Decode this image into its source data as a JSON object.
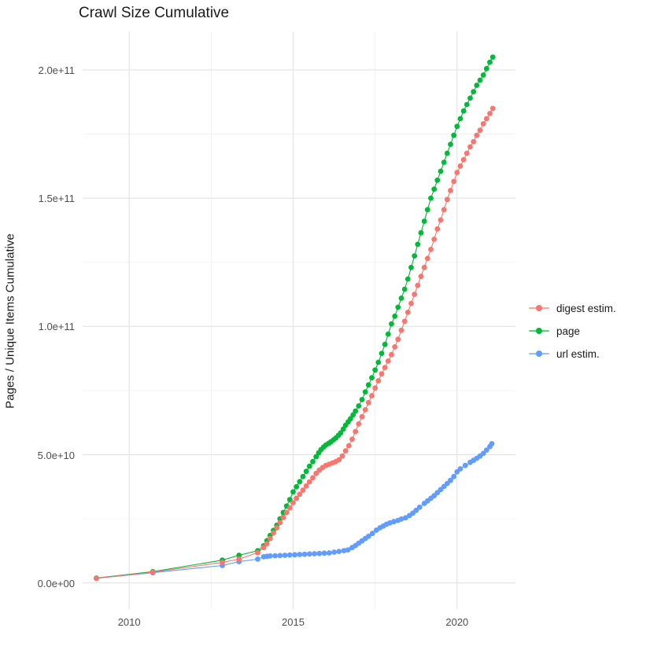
{
  "title": "Crawl Size Cumulative",
  "axes": {
    "y_label": "Pages / Unique Items Cumulative",
    "x_label": "",
    "y_ticks": [
      {
        "label": "0.0e+00",
        "value_e9": 0
      },
      {
        "label": "5.0e+10",
        "value_e9": 50
      },
      {
        "label": "1.0e+11",
        "value_e9": 100
      },
      {
        "label": "1.5e+11",
        "value_e9": 150
      },
      {
        "label": "2.0e+11",
        "value_e9": 200
      }
    ],
    "x_ticks": [
      {
        "label": "2010",
        "value": 2010
      },
      {
        "label": "2015",
        "value": 2015
      },
      {
        "label": "2020",
        "value": 2020
      }
    ]
  },
  "legend": {
    "items": [
      {
        "label": "digest estim.",
        "color": "#F8766D"
      },
      {
        "label": "page",
        "color": "#00BA38"
      },
      {
        "label": "url estim.",
        "color": "#619CFF"
      }
    ]
  },
  "chart_data": {
    "type": "line",
    "style": "points-with-line",
    "title": "Crawl Size Cumulative",
    "xlabel": "",
    "ylabel": "Pages / Unique Items Cumulative",
    "y_unit": "items (values stored in billions, 1e9)",
    "x_domain": [
      2008.58,
      2021.78
    ],
    "y_domain_e9": [
      -10.2,
      215
    ],
    "grid": {
      "x_major": [
        2010,
        2015,
        2020
      ],
      "x_minor": [
        2012.5,
        2017.5
      ],
      "y_major_e9": [
        0,
        50,
        100,
        150,
        200
      ],
      "y_minor_e9": [
        25,
        75,
        125,
        175
      ]
    },
    "legend_position": "right",
    "series": [
      {
        "name": "url estim.",
        "color": "#619CFF",
        "points": [
          [
            2009.0,
            1.8
          ],
          [
            2010.72,
            4.0
          ],
          [
            2012.84,
            6.8
          ],
          [
            2013.35,
            8.3
          ],
          [
            2013.92,
            9.3
          ],
          [
            2014.1,
            10.2
          ],
          [
            2014.2,
            10.4
          ],
          [
            2014.3,
            10.5
          ],
          [
            2014.45,
            10.6
          ],
          [
            2014.6,
            10.7
          ],
          [
            2014.75,
            10.8
          ],
          [
            2014.9,
            10.9
          ],
          [
            2015.05,
            11.0
          ],
          [
            2015.2,
            11.1
          ],
          [
            2015.35,
            11.2
          ],
          [
            2015.5,
            11.3
          ],
          [
            2015.65,
            11.4
          ],
          [
            2015.8,
            11.5
          ],
          [
            2015.95,
            11.6
          ],
          [
            2016.1,
            11.7
          ],
          [
            2016.25,
            12.0
          ],
          [
            2016.4,
            12.3
          ],
          [
            2016.55,
            12.6
          ],
          [
            2016.67,
            12.9
          ],
          [
            2016.8,
            13.8
          ],
          [
            2016.9,
            14.6
          ],
          [
            2017.0,
            15.5
          ],
          [
            2017.1,
            16.4
          ],
          [
            2017.2,
            17.3
          ],
          [
            2017.3,
            18.2
          ],
          [
            2017.42,
            19.3
          ],
          [
            2017.54,
            20.6
          ],
          [
            2017.65,
            21.5
          ],
          [
            2017.75,
            22.2
          ],
          [
            2017.85,
            22.9
          ],
          [
            2017.95,
            23.4
          ],
          [
            2018.07,
            23.9
          ],
          [
            2018.2,
            24.4
          ],
          [
            2018.3,
            24.9
          ],
          [
            2018.43,
            25.4
          ],
          [
            2018.55,
            26.3
          ],
          [
            2018.65,
            27.2
          ],
          [
            2018.75,
            28.3
          ],
          [
            2018.86,
            29.5
          ],
          [
            2019.0,
            31.0
          ],
          [
            2019.1,
            32.0
          ],
          [
            2019.2,
            33.0
          ],
          [
            2019.3,
            34.0
          ],
          [
            2019.4,
            35.2
          ],
          [
            2019.5,
            36.4
          ],
          [
            2019.6,
            37.6
          ],
          [
            2019.7,
            38.8
          ],
          [
            2019.8,
            40.0
          ],
          [
            2019.9,
            41.5
          ],
          [
            2020.0,
            43.3
          ],
          [
            2020.1,
            44.5
          ],
          [
            2020.25,
            45.8
          ],
          [
            2020.4,
            47.0
          ],
          [
            2020.5,
            47.8
          ],
          [
            2020.6,
            48.6
          ],
          [
            2020.7,
            49.5
          ],
          [
            2020.8,
            50.5
          ],
          [
            2020.9,
            51.8
          ],
          [
            2021.0,
            53.2
          ],
          [
            2021.06,
            54.3
          ]
        ]
      },
      {
        "name": "page",
        "color": "#00BA38",
        "points": [
          [
            2009.0,
            1.9
          ],
          [
            2010.72,
            4.4
          ],
          [
            2012.84,
            8.9
          ],
          [
            2013.35,
            10.8
          ],
          [
            2013.92,
            12.6
          ],
          [
            2014.1,
            14.5
          ],
          [
            2014.2,
            16.5
          ],
          [
            2014.3,
            18.5
          ],
          [
            2014.4,
            20.5
          ],
          [
            2014.5,
            22.5
          ],
          [
            2014.6,
            25.0
          ],
          [
            2014.7,
            27.5
          ],
          [
            2014.8,
            30.0
          ],
          [
            2014.9,
            32.5
          ],
          [
            2015.0,
            35.5
          ],
          [
            2015.1,
            37.5
          ],
          [
            2015.2,
            39.5
          ],
          [
            2015.3,
            41.5
          ],
          [
            2015.4,
            43.5
          ],
          [
            2015.5,
            45.5
          ],
          [
            2015.6,
            47.3
          ],
          [
            2015.7,
            49.2
          ],
          [
            2015.78,
            50.7
          ],
          [
            2015.85,
            52.0
          ],
          [
            2015.93,
            53.0
          ],
          [
            2016.0,
            53.8
          ],
          [
            2016.08,
            54.4
          ],
          [
            2016.15,
            55.0
          ],
          [
            2016.23,
            55.8
          ],
          [
            2016.3,
            56.5
          ],
          [
            2016.38,
            57.5
          ],
          [
            2016.45,
            58.5
          ],
          [
            2016.53,
            60.0
          ],
          [
            2016.6,
            61.5
          ],
          [
            2016.68,
            62.8
          ],
          [
            2016.75,
            64.0
          ],
          [
            2016.83,
            65.5
          ],
          [
            2016.9,
            67.0
          ],
          [
            2017.0,
            69.0
          ],
          [
            2017.1,
            71.5
          ],
          [
            2017.2,
            74.5
          ],
          [
            2017.3,
            77.2
          ],
          [
            2017.4,
            80.0
          ],
          [
            2017.5,
            83.0
          ],
          [
            2017.6,
            86.0
          ],
          [
            2017.7,
            89.5
          ],
          [
            2017.8,
            93.0
          ],
          [
            2017.9,
            97.0
          ],
          [
            2018.0,
            101.0
          ],
          [
            2018.1,
            104.0
          ],
          [
            2018.2,
            107.5
          ],
          [
            2018.3,
            111.0
          ],
          [
            2018.4,
            114.5
          ],
          [
            2018.5,
            118.5
          ],
          [
            2018.6,
            123.0
          ],
          [
            2018.7,
            127.5
          ],
          [
            2018.8,
            132.0
          ],
          [
            2018.9,
            136.5
          ],
          [
            2019.0,
            141.0
          ],
          [
            2019.1,
            145.5
          ],
          [
            2019.2,
            150.0
          ],
          [
            2019.3,
            153.5
          ],
          [
            2019.4,
            157.0
          ],
          [
            2019.5,
            160.5
          ],
          [
            2019.6,
            164.0
          ],
          [
            2019.7,
            167.5
          ],
          [
            2019.8,
            171.0
          ],
          [
            2019.9,
            174.5
          ],
          [
            2020.0,
            178.0
          ],
          [
            2020.1,
            181.0
          ],
          [
            2020.2,
            184.0
          ],
          [
            2020.3,
            186.5
          ],
          [
            2020.4,
            189.0
          ],
          [
            2020.5,
            191.5
          ],
          [
            2020.6,
            194.0
          ],
          [
            2020.7,
            196.0
          ],
          [
            2020.8,
            198.0
          ],
          [
            2020.9,
            200.5
          ],
          [
            2021.0,
            203.0
          ],
          [
            2021.09,
            205.0
          ]
        ]
      },
      {
        "name": "digest estim.",
        "color": "#F8766D",
        "points": [
          [
            2009.0,
            1.8
          ],
          [
            2010.72,
            4.2
          ],
          [
            2012.84,
            8.0
          ],
          [
            2013.35,
            9.3
          ],
          [
            2013.92,
            11.8
          ],
          [
            2014.1,
            13.8
          ],
          [
            2014.2,
            15.3
          ],
          [
            2014.3,
            17.3
          ],
          [
            2014.4,
            19.5
          ],
          [
            2014.5,
            21.5
          ],
          [
            2014.6,
            23.5
          ],
          [
            2014.7,
            25.5
          ],
          [
            2014.8,
            27.5
          ],
          [
            2014.9,
            29.3
          ],
          [
            2015.0,
            31.3
          ],
          [
            2015.1,
            33.0
          ],
          [
            2015.2,
            34.6
          ],
          [
            2015.3,
            36.2
          ],
          [
            2015.4,
            37.8
          ],
          [
            2015.5,
            39.4
          ],
          [
            2015.6,
            41.0
          ],
          [
            2015.7,
            42.7
          ],
          [
            2015.8,
            44.0
          ],
          [
            2015.9,
            45.0
          ],
          [
            2016.0,
            45.8
          ],
          [
            2016.1,
            46.3
          ],
          [
            2016.2,
            46.8
          ],
          [
            2016.3,
            47.3
          ],
          [
            2016.4,
            48.0
          ],
          [
            2016.5,
            49.5
          ],
          [
            2016.6,
            51.5
          ],
          [
            2016.7,
            53.5
          ],
          [
            2016.8,
            56.0
          ],
          [
            2016.9,
            59.0
          ],
          [
            2017.0,
            62.0
          ],
          [
            2017.1,
            64.8
          ],
          [
            2017.2,
            67.5
          ],
          [
            2017.3,
            70.3
          ],
          [
            2017.4,
            73.0
          ],
          [
            2017.5,
            76.0
          ],
          [
            2017.6,
            78.8
          ],
          [
            2017.7,
            81.5
          ],
          [
            2017.8,
            84.0
          ],
          [
            2017.9,
            86.5
          ],
          [
            2018.0,
            89.0
          ],
          [
            2018.1,
            92.0
          ],
          [
            2018.2,
            95.0
          ],
          [
            2018.3,
            98.5
          ],
          [
            2018.4,
            102.0
          ],
          [
            2018.5,
            105.5
          ],
          [
            2018.6,
            109.0
          ],
          [
            2018.7,
            112.5
          ],
          [
            2018.8,
            116.0
          ],
          [
            2018.9,
            119.5
          ],
          [
            2019.0,
            123.0
          ],
          [
            2019.1,
            126.5
          ],
          [
            2019.2,
            130.0
          ],
          [
            2019.3,
            134.0
          ],
          [
            2019.4,
            138.0
          ],
          [
            2019.5,
            141.5
          ],
          [
            2019.6,
            145.5
          ],
          [
            2019.7,
            149.5
          ],
          [
            2019.8,
            153.0
          ],
          [
            2019.9,
            156.5
          ],
          [
            2020.0,
            160.0
          ],
          [
            2020.1,
            162.5
          ],
          [
            2020.2,
            165.0
          ],
          [
            2020.3,
            167.5
          ],
          [
            2020.4,
            170.0
          ],
          [
            2020.5,
            172.0
          ],
          [
            2020.6,
            174.5
          ],
          [
            2020.7,
            176.5
          ],
          [
            2020.8,
            179.0
          ],
          [
            2020.9,
            181.0
          ],
          [
            2021.0,
            183.0
          ],
          [
            2021.09,
            185.0
          ]
        ]
      }
    ],
    "colors": {
      "grid_major": "#e3e3e3",
      "grid_minor": "#f0f0f0",
      "axis_text": "#4d4d4d",
      "title_text": "#1a1a1a"
    }
  }
}
